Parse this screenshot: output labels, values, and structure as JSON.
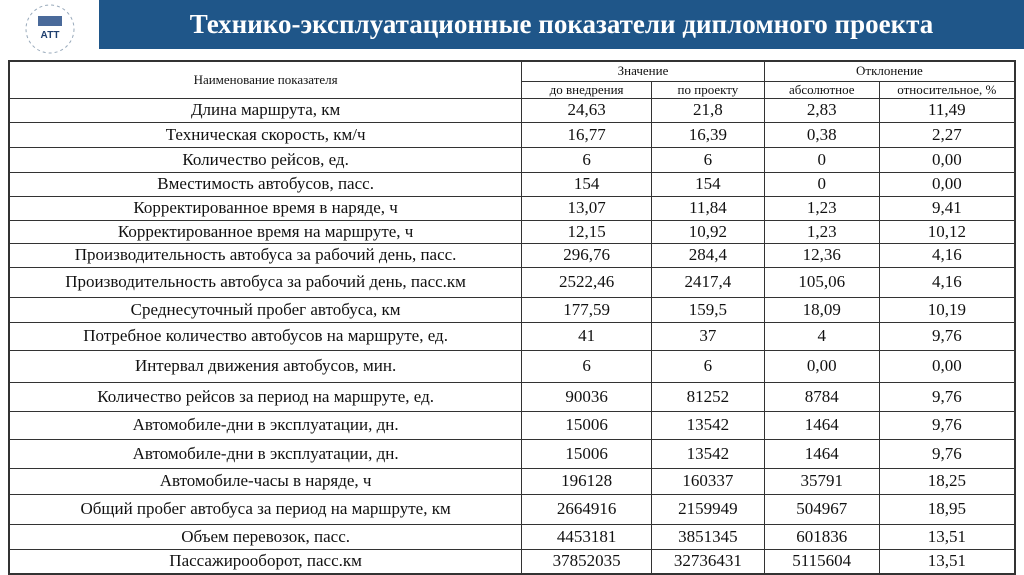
{
  "header": {
    "title": "Технико-эксплуатационные показатели дипломного проекта",
    "logo_text": "АТТ"
  },
  "table": {
    "col_name": "Наименование показателя",
    "group_value": "Значение",
    "group_deviation": "Отклонение",
    "subcols": [
      "до внедрения",
      "по проекту",
      "абсолютное",
      "относительное, %"
    ],
    "rows": [
      [
        "Длина маршрута, км",
        "24,63",
        "21,8",
        "2,83",
        "11,49"
      ],
      [
        "Техническая скорость, км/ч",
        "16,77",
        "16,39",
        "0,38",
        "2,27"
      ],
      [
        "Количество рейсов, ед.",
        "6",
        "6",
        "0",
        "0,00"
      ],
      [
        "Вместимость автобусов, пасс.",
        "154",
        "154",
        "0",
        "0,00"
      ],
      [
        "Корректированное время в наряде, ч",
        "13,07",
        "11,84",
        "1,23",
        "9,41"
      ],
      [
        "Корректированное время на маршруте, ч",
        "12,15",
        "10,92",
        "1,23",
        "10,12"
      ],
      [
        "Производительность автобуса за рабочий день, пасс.",
        "296,76",
        "284,4",
        "12,36",
        "4,16"
      ],
      [
        "Производительность автобуса за рабочий день, пасс.км",
        "2522,46",
        "2417,4",
        "105,06",
        "4,16"
      ],
      [
        "Среднесуточный пробег автобуса, км",
        "177,59",
        "159,5",
        "18,09",
        "10,19"
      ],
      [
        "Потребное количество автобусов на маршруте, ед.",
        "41",
        "37",
        "4",
        "9,76"
      ],
      [
        "Интервал движения автобусов, мин.",
        "6",
        "6",
        "0,00",
        "0,00"
      ],
      [
        "Количество рейсов за период на маршруте, ед.",
        "90036",
        "81252",
        "8784",
        "9,76"
      ],
      [
        "Автомобиле-дни в эксплуатации, дн.",
        "15006",
        "13542",
        "1464",
        "9,76"
      ],
      [
        "Автомобиле-дни в эксплуатации, дн.",
        "15006",
        "13542",
        "1464",
        "9,76"
      ],
      [
        "Автомобиле-часы в наряде, ч",
        "196128",
        "160337",
        "35791",
        "18,25"
      ],
      [
        "Общий пробег автобуса за период на маршруте, км",
        "2664916",
        "2159949",
        "504967",
        "18,95"
      ],
      [
        "Объем перевозок, пасс.",
        "4453181",
        "3851345",
        "601836",
        "13,51"
      ],
      [
        "Пассажирооборот, пасс.км",
        "37852035",
        "32736431",
        "5115604",
        "13,51"
      ]
    ]
  }
}
